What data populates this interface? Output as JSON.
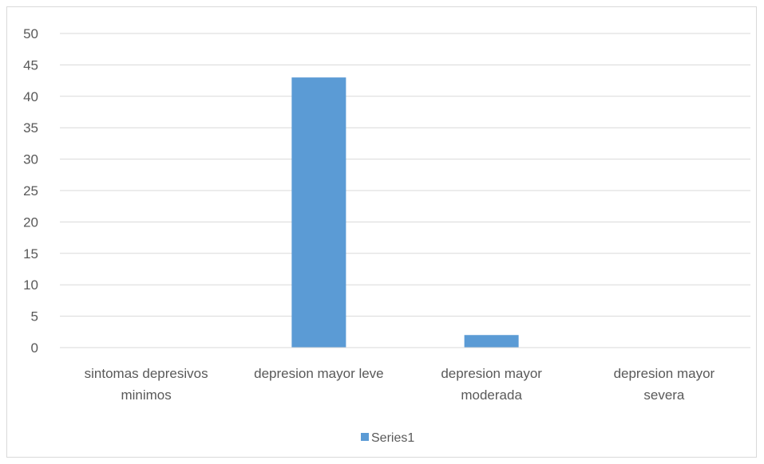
{
  "chart_data": {
    "type": "bar",
    "categories": [
      [
        "sintomas depresivos",
        "minimos"
      ],
      [
        "depresion mayor leve"
      ],
      [
        "depresion mayor",
        "moderada"
      ],
      [
        "depresion mayor",
        "severa"
      ]
    ],
    "series": [
      {
        "name": "Series1",
        "values": [
          0,
          43,
          2,
          0
        ],
        "color": "#5b9bd5"
      }
    ],
    "ylim": [
      0,
      50
    ],
    "yticks": [
      0,
      5,
      10,
      15,
      20,
      25,
      30,
      35,
      40,
      45,
      50
    ],
    "grid": true,
    "gridColor": "#d9d9d9",
    "legend": {
      "position": "bottom"
    }
  }
}
